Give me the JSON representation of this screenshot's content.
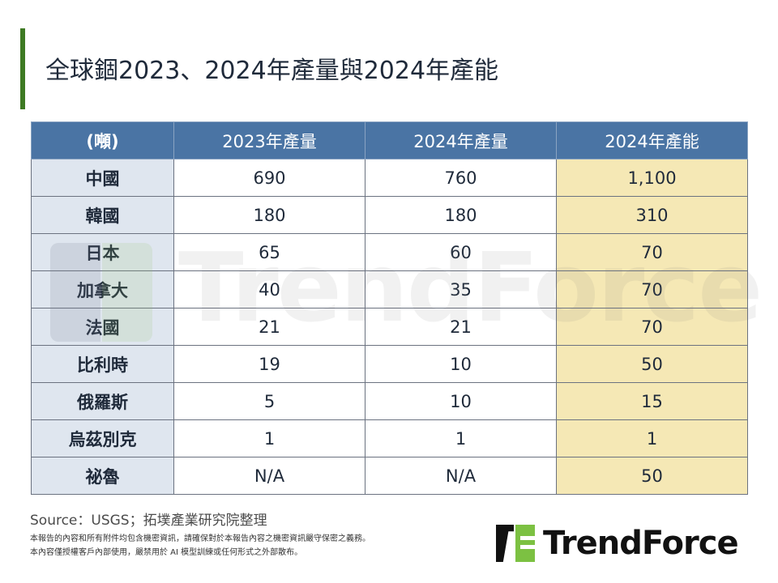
{
  "header": {
    "title": "全球錮2023、2024年產量與2024年產能",
    "accent_color": "#3e7a23"
  },
  "table": {
    "columns": [
      "(噸)",
      "2023年產量",
      "2024年產量",
      "2024年產能"
    ],
    "rows": [
      {
        "country": "中國",
        "prod_2023": "690",
        "prod_2024": "760",
        "cap_2024": "1,100"
      },
      {
        "country": "韓國",
        "prod_2023": "180",
        "prod_2024": "180",
        "cap_2024": "310"
      },
      {
        "country": "日本",
        "prod_2023": "65",
        "prod_2024": "60",
        "cap_2024": "70"
      },
      {
        "country": "加拿大",
        "prod_2023": "40",
        "prod_2024": "35",
        "cap_2024": "70"
      },
      {
        "country": "法國",
        "prod_2023": "21",
        "prod_2024": "21",
        "cap_2024": "70"
      },
      {
        "country": "比利時",
        "prod_2023": "19",
        "prod_2024": "10",
        "cap_2024": "50"
      },
      {
        "country": "俄羅斯",
        "prod_2023": "5",
        "prod_2024": "10",
        "cap_2024": "15"
      },
      {
        "country": "烏茲別克",
        "prod_2023": "1",
        "prod_2024": "1",
        "cap_2024": "1"
      },
      {
        "country": "祕魯",
        "prod_2023": "N/A",
        "prod_2024": "N/A",
        "cap_2024": "50"
      }
    ],
    "colors": {
      "header_bg": "#4a74a4",
      "rowhead_bg": "#dfe6ef",
      "capacity_bg": "#f5e8b5"
    }
  },
  "footer": {
    "source": "Source：USGS；拓墣產業研究院整理",
    "disclaimer_line1": "本報告的內容和所有附件均包含機密資訊，請確保對於本報告內容之機密資訊嚴守保密之義務。",
    "disclaimer_line2": "本內容僅授權客戶內部使用，嚴禁用於 AI 模型訓練或任何形式之外部散布。",
    "brand": "TrendForce"
  },
  "watermark": {
    "text": "TrendForce"
  },
  "chart_data": {
    "type": "table",
    "title": "全球錮2023、2024年產量與2024年產能",
    "unit": "噸",
    "categories": [
      "中國",
      "韓國",
      "日本",
      "加拿大",
      "法國",
      "比利時",
      "俄羅斯",
      "烏茲別克",
      "祕魯"
    ],
    "series": [
      {
        "name": "2023年產量",
        "values": [
          690,
          180,
          65,
          40,
          21,
          19,
          5,
          1,
          null
        ]
      },
      {
        "name": "2024年產量",
        "values": [
          760,
          180,
          60,
          35,
          21,
          10,
          10,
          1,
          null
        ]
      },
      {
        "name": "2024年產能",
        "values": [
          1100,
          310,
          70,
          70,
          70,
          50,
          15,
          1,
          50
        ]
      }
    ],
    "source": "USGS；拓墣產業研究院整理"
  }
}
